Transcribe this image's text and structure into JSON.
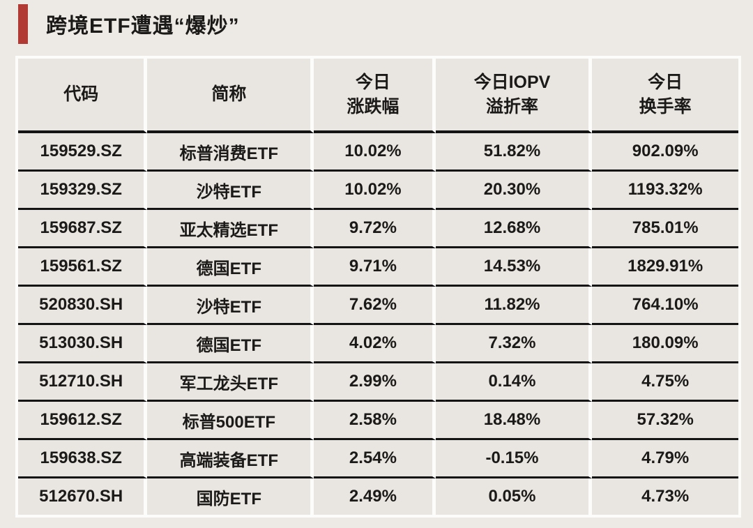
{
  "page": {
    "background_color": "#EDEAE5",
    "accent_color": "#B23A34",
    "table_line_color": "#141414"
  },
  "title": "跨境ETF遭遇“爆炒”",
  "table": {
    "headers": {
      "code": "代码",
      "name": "简称",
      "change_line1": "今日",
      "change_line2": "涨跌幅",
      "iopv_line1": "今日IOPV",
      "iopv_line2": "溢折率",
      "turnover_line1": "今日",
      "turnover_line2": "换手率"
    },
    "rows": [
      {
        "code": "159529.SZ",
        "name": "标普消费ETF",
        "change": "10.02%",
        "iopv": "51.82%",
        "turnover": "902.09%"
      },
      {
        "code": "159329.SZ",
        "name": "沙特ETF",
        "change": "10.02%",
        "iopv": "20.30%",
        "turnover": "1193.32%"
      },
      {
        "code": "159687.SZ",
        "name": "亚太精选ETF",
        "change": "9.72%",
        "iopv": "12.68%",
        "turnover": "785.01%"
      },
      {
        "code": "159561.SZ",
        "name": "德国ETF",
        "change": "9.71%",
        "iopv": "14.53%",
        "turnover": "1829.91%"
      },
      {
        "code": "520830.SH",
        "name": "沙特ETF",
        "change": "7.62%",
        "iopv": "11.82%",
        "turnover": "764.10%"
      },
      {
        "code": "513030.SH",
        "name": "德国ETF",
        "change": "4.02%",
        "iopv": "7.32%",
        "turnover": "180.09%"
      },
      {
        "code": "512710.SH",
        "name": "军工龙头ETF",
        "change": "2.99%",
        "iopv": "0.14%",
        "turnover": "4.75%"
      },
      {
        "code": "159612.SZ",
        "name": "标普500ETF",
        "change": "2.58%",
        "iopv": "18.48%",
        "turnover": "57.32%"
      },
      {
        "code": "159638.SZ",
        "name": "高端装备ETF",
        "change": "2.54%",
        "iopv": "-0.15%",
        "turnover": "4.79%"
      },
      {
        "code": "512670.SH",
        "name": "国防ETF",
        "change": "2.49%",
        "iopv": "0.05%",
        "turnover": "4.73%"
      }
    ]
  },
  "chart_data": {
    "type": "table",
    "title": "跨境ETF遭遇“爆炒”",
    "columns": [
      "代码",
      "简称",
      "今日涨跌幅",
      "今日IOPV溢折率",
      "今日换手率"
    ],
    "rows": [
      [
        "159529.SZ",
        "标普消费ETF",
        "10.02%",
        "51.82%",
        "902.09%"
      ],
      [
        "159329.SZ",
        "沙特ETF",
        "10.02%",
        "20.30%",
        "1193.32%"
      ],
      [
        "159687.SZ",
        "亚太精选ETF",
        "9.72%",
        "12.68%",
        "785.01%"
      ],
      [
        "159561.SZ",
        "德国ETF",
        "9.71%",
        "14.53%",
        "1829.91%"
      ],
      [
        "520830.SH",
        "沙特ETF",
        "7.62%",
        "11.82%",
        "764.10%"
      ],
      [
        "513030.SH",
        "德国ETF",
        "4.02%",
        "7.32%",
        "180.09%"
      ],
      [
        "512710.SH",
        "军工龙头ETF",
        "2.99%",
        "0.14%",
        "4.75%"
      ],
      [
        "159612.SZ",
        "标普500ETF",
        "2.58%",
        "18.48%",
        "57.32%"
      ],
      [
        "159638.SZ",
        "高端装备ETF",
        "2.54%",
        "-0.15%",
        "4.79%"
      ],
      [
        "512670.SH",
        "国防ETF",
        "2.49%",
        "0.05%",
        "4.73%"
      ]
    ]
  }
}
